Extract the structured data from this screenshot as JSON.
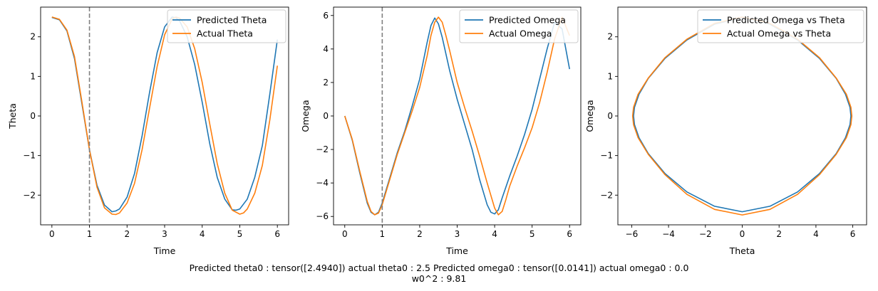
{
  "caption": {
    "line1": "Predicted theta0 : tensor([2.4940]) actual theta0 : 2.5 Predicted omega0 : tensor([0.0141]) actual omega0 : 0.0",
    "line2": "w0^2 : 9.81"
  },
  "colors": {
    "predicted": "#1f77b4",
    "actual": "#ff7f0e",
    "marker": "#808080"
  },
  "chart_data": [
    {
      "type": "line",
      "xlabel": "Time",
      "ylabel": "Theta",
      "xlim": [
        -0.3,
        6.3
      ],
      "ylim": [
        -2.75,
        2.75
      ],
      "xticks": [
        0,
        1,
        2,
        3,
        4,
        5,
        6
      ],
      "yticks": [
        -2,
        -1,
        0,
        1,
        2
      ],
      "vline_x": 1,
      "legend": "top-right",
      "series": [
        {
          "name": "Predicted Theta",
          "color_key": "predicted",
          "x": [
            0,
            0.2,
            0.4,
            0.6,
            0.8,
            1.0,
            1.2,
            1.4,
            1.6,
            1.7,
            1.8,
            2.0,
            2.2,
            2.4,
            2.6,
            2.8,
            3.0,
            3.2,
            3.3,
            3.4,
            3.6,
            3.8,
            4.0,
            4.2,
            4.4,
            4.6,
            4.8,
            4.9,
            5.0,
            5.2,
            5.4,
            5.6,
            5.8,
            6.0
          ],
          "y": [
            2.49,
            2.43,
            2.15,
            1.45,
            0.3,
            -0.85,
            -1.75,
            -2.25,
            -2.42,
            -2.4,
            -2.35,
            -2.05,
            -1.45,
            -0.5,
            0.6,
            1.6,
            2.25,
            2.5,
            2.48,
            2.4,
            2.0,
            1.3,
            0.35,
            -0.7,
            -1.55,
            -2.1,
            -2.37,
            -2.38,
            -2.35,
            -2.1,
            -1.55,
            -0.75,
            0.55,
            1.93
          ]
        },
        {
          "name": "Actual Theta",
          "color_key": "actual",
          "x": [
            0,
            0.2,
            0.4,
            0.6,
            0.8,
            1.0,
            1.2,
            1.4,
            1.6,
            1.7,
            1.8,
            2.0,
            2.2,
            2.4,
            2.6,
            2.8,
            3.0,
            3.2,
            3.3,
            3.4,
            3.6,
            3.8,
            4.0,
            4.2,
            4.4,
            4.6,
            4.8,
            5.0,
            5.1,
            5.2,
            5.4,
            5.6,
            5.8,
            6.0
          ],
          "y": [
            2.5,
            2.44,
            2.17,
            1.5,
            0.35,
            -0.85,
            -1.8,
            -2.32,
            -2.48,
            -2.49,
            -2.45,
            -2.2,
            -1.7,
            -0.85,
            0.2,
            1.25,
            2.05,
            2.45,
            2.5,
            2.47,
            2.25,
            1.7,
            0.85,
            -0.2,
            -1.2,
            -1.95,
            -2.38,
            -2.48,
            -2.45,
            -2.35,
            -1.95,
            -1.25,
            -0.1,
            1.27
          ]
        }
      ]
    },
    {
      "type": "line",
      "xlabel": "Time",
      "ylabel": "Omega",
      "xlim": [
        -0.3,
        6.3
      ],
      "ylim": [
        -6.5,
        6.5
      ],
      "xticks": [
        0,
        1,
        2,
        3,
        4,
        5,
        6
      ],
      "yticks": [
        -6,
        -4,
        -2,
        0,
        2,
        4,
        6
      ],
      "vline_x": 1,
      "legend": "top-right",
      "series": [
        {
          "name": "Predicted Omega",
          "color_key": "predicted",
          "x": [
            0,
            0.2,
            0.4,
            0.6,
            0.7,
            0.8,
            0.9,
            1.0,
            1.2,
            1.4,
            1.6,
            1.8,
            2.0,
            2.2,
            2.3,
            2.4,
            2.5,
            2.6,
            2.8,
            3.0,
            3.2,
            3.4,
            3.6,
            3.8,
            3.9,
            4.0,
            4.1,
            4.2,
            4.4,
            4.6,
            4.8,
            5.0,
            5.2,
            5.4,
            5.6,
            5.8,
            6.0
          ],
          "y": [
            0.0,
            -1.45,
            -3.4,
            -5.2,
            -5.75,
            -5.9,
            -5.75,
            -5.2,
            -3.7,
            -2.2,
            -0.9,
            0.6,
            2.2,
            4.4,
            5.4,
            5.85,
            5.5,
            4.7,
            2.7,
            1.0,
            -0.5,
            -2.0,
            -3.8,
            -5.3,
            -5.75,
            -5.85,
            -5.6,
            -4.9,
            -3.6,
            -2.4,
            -1.1,
            0.4,
            2.2,
            4.0,
            5.6,
            5.2,
            2.8
          ]
        },
        {
          "name": "Actual Omega",
          "color_key": "actual",
          "x": [
            0,
            0.2,
            0.4,
            0.6,
            0.7,
            0.8,
            0.9,
            1.0,
            1.2,
            1.4,
            1.6,
            1.8,
            2.0,
            2.2,
            2.3,
            2.4,
            2.5,
            2.6,
            2.7,
            2.8,
            3.0,
            3.2,
            3.4,
            3.6,
            3.8,
            4.0,
            4.1,
            4.2,
            4.3,
            4.4,
            4.6,
            4.8,
            5.0,
            5.2,
            5.4,
            5.6,
            5.8,
            6.0
          ],
          "y": [
            0.0,
            -1.4,
            -3.3,
            -5.1,
            -5.7,
            -5.9,
            -5.8,
            -5.3,
            -3.8,
            -2.3,
            -1.0,
            0.3,
            1.7,
            3.6,
            4.8,
            5.6,
            5.9,
            5.6,
            4.8,
            3.9,
            2.0,
            0.5,
            -0.9,
            -2.4,
            -4.0,
            -5.5,
            -5.9,
            -5.7,
            -5.0,
            -4.2,
            -3.0,
            -1.9,
            -0.7,
            0.8,
            2.6,
            4.6,
            5.9,
            4.8
          ]
        }
      ]
    },
    {
      "type": "line",
      "xlabel": "Theta",
      "ylabel": "Omega",
      "xlim": [
        -6.75,
        6.75
      ],
      "ylim": [
        -2.75,
        2.75
      ],
      "xticks": [
        -6,
        -4,
        -2,
        0,
        2,
        4,
        6
      ],
      "yticks": [
        -2,
        -1,
        0,
        1,
        2
      ],
      "legend": "top-right",
      "series": [
        {
          "name": "Predicted Omega vs Theta",
          "color_key": "predicted",
          "x": [
            0,
            1.5,
            3.0,
            4.2,
            5.1,
            5.6,
            5.85,
            5.9,
            5.85,
            5.6,
            5.1,
            4.2,
            3.0,
            1.5,
            0,
            -1.5,
            -3.0,
            -4.2,
            -5.1,
            -5.6,
            -5.85,
            -5.9,
            -5.85,
            -5.6,
            -5.1,
            -4.2,
            -3.0,
            -1.5,
            0
          ],
          "y": [
            2.49,
            2.32,
            1.92,
            1.45,
            0.95,
            0.55,
            0.22,
            0,
            -0.22,
            -0.55,
            -0.95,
            -1.45,
            -1.92,
            -2.28,
            -2.42,
            -2.28,
            -1.92,
            -1.45,
            -0.95,
            -0.55,
            -0.22,
            0,
            0.22,
            0.55,
            0.95,
            1.45,
            1.92,
            2.32,
            2.49
          ]
        },
        {
          "name": "Actual Omega vs Theta",
          "color_key": "actual",
          "x": [
            0,
            1.5,
            3.0,
            4.2,
            5.1,
            5.65,
            5.9,
            5.95,
            5.9,
            5.65,
            5.1,
            4.2,
            3.0,
            1.5,
            0,
            -1.5,
            -3.0,
            -4.2,
            -5.1,
            -5.65,
            -5.9,
            -5.95,
            -5.9,
            -5.65,
            -5.1,
            -4.2,
            -3.0,
            -1.5,
            0
          ],
          "y": [
            2.5,
            2.34,
            1.94,
            1.47,
            0.96,
            0.55,
            0.22,
            0,
            -0.22,
            -0.55,
            -0.97,
            -1.48,
            -1.98,
            -2.36,
            -2.5,
            -2.36,
            -1.98,
            -1.48,
            -0.97,
            -0.55,
            -0.22,
            0,
            0.22,
            0.55,
            0.96,
            1.47,
            1.94,
            2.34,
            2.5
          ]
        }
      ]
    }
  ]
}
